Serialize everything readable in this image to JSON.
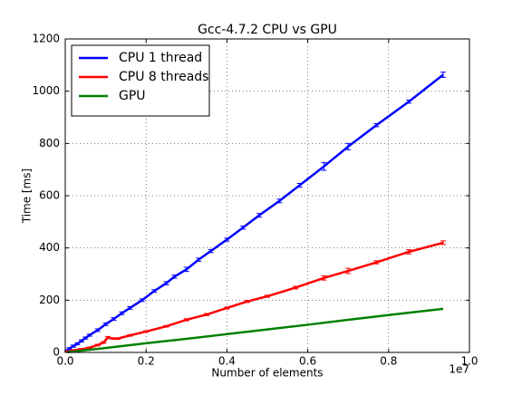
{
  "chart_data": {
    "type": "line",
    "title": "Gcc-4.7.2 CPU vs GPU",
    "xlabel": "Number of elements",
    "ylabel": "Time [ms]",
    "x_offset_label": "1e7",
    "xlim": [
      0,
      1.0
    ],
    "ylim": [
      0,
      1200
    ],
    "xticks": [
      {
        "value": 0,
        "label": "0.0"
      },
      0.2,
      0.4,
      0.6,
      0.8,
      {
        "value": 1,
        "label": "1.0"
      }
    ],
    "yticks": [
      0,
      200,
      400,
      600,
      800,
      1000,
      1200
    ],
    "grid": true,
    "legend": "upper left",
    "series": [
      {
        "name": "CPU 1 thread",
        "color": "#0000ff",
        "x": [
          0.005,
          0.01,
          0.02,
          0.03,
          0.04,
          0.05,
          0.06,
          0.08,
          0.1,
          0.12,
          0.14,
          0.16,
          0.19,
          0.22,
          0.25,
          0.27,
          0.3,
          0.33,
          0.36,
          0.4,
          0.44,
          0.48,
          0.53,
          0.58,
          0.64,
          0.7,
          0.77,
          0.85,
          0.935
        ],
        "values": [
          8,
          15,
          24,
          33,
          44,
          55,
          66,
          85,
          108,
          128,
          150,
          170,
          200,
          235,
          265,
          290,
          318,
          355,
          388,
          432,
          478,
          525,
          580,
          640,
          712,
          788,
          870,
          960,
          1063
        ],
        "errors": [
          3,
          3,
          4,
          4,
          4,
          4,
          4,
          5,
          5,
          5,
          5,
          5,
          5,
          5,
          6,
          6,
          8,
          6,
          6,
          6,
          6,
          7,
          7,
          7,
          15,
          12,
          6,
          6,
          10
        ]
      },
      {
        "name": "CPU 8 threads",
        "color": "#ff0000",
        "x": [
          0.005,
          0.01,
          0.02,
          0.04,
          0.06,
          0.08,
          0.095,
          0.105,
          0.12,
          0.13,
          0.16,
          0.2,
          0.25,
          0.3,
          0.35,
          0.4,
          0.45,
          0.5,
          0.57,
          0.64,
          0.7,
          0.77,
          0.85,
          0.935
        ],
        "values": [
          3,
          5,
          8,
          12,
          18,
          28,
          38,
          57,
          53,
          53,
          65,
          80,
          100,
          125,
          145,
          170,
          195,
          215,
          248,
          285,
          312,
          345,
          385,
          420
        ],
        "errors": [
          2,
          2,
          2,
          3,
          3,
          3,
          3,
          4,
          3,
          3,
          3,
          3,
          3,
          4,
          4,
          4,
          4,
          4,
          5,
          8,
          10,
          6,
          8,
          7
        ]
      },
      {
        "name": "GPU",
        "color": "#008000",
        "x": [
          0.005,
          0.1,
          0.2,
          0.3,
          0.4,
          0.5,
          0.6,
          0.7,
          0.8,
          0.935
        ],
        "values": [
          1,
          17,
          35,
          52,
          70,
          88,
          106,
          125,
          143,
          167
        ]
      }
    ]
  }
}
